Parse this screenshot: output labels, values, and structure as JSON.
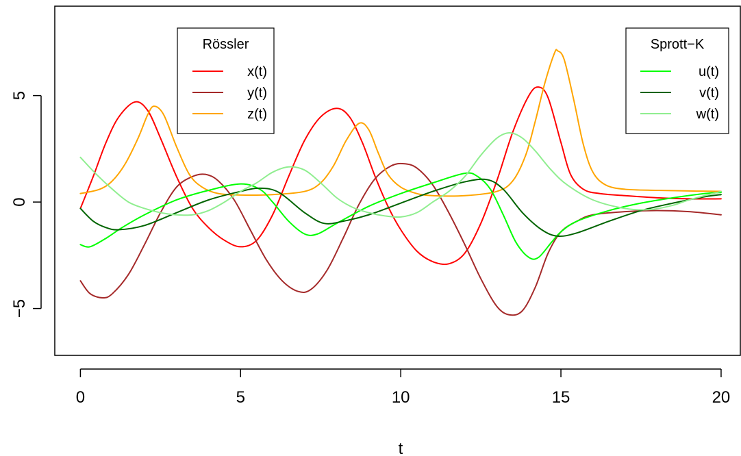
{
  "chart_data": {
    "type": "line",
    "title": "",
    "xlabel": "t",
    "ylabel": "",
    "xlim": [
      -0.8,
      20.6
    ],
    "ylim": [
      -7.2,
      9.2
    ],
    "x_ticks": [
      0,
      5,
      10,
      15,
      20
    ],
    "y_ticks": [
      -5,
      0,
      5
    ],
    "x_tick_labels": [
      "0",
      "5",
      "10",
      "15",
      "20"
    ],
    "y_tick_labels": [
      "−5",
      "0",
      "5"
    ],
    "grid": false,
    "legends": [
      {
        "title": "Rössler",
        "placement": "top-left",
        "entries": [
          {
            "label": "x(t)",
            "color": "#FF0000"
          },
          {
            "label": "y(t)",
            "color": "#A52A2A"
          },
          {
            "label": "z(t)",
            "color": "#FFA500"
          }
        ]
      },
      {
        "title": "Sprott−K",
        "placement": "top-right",
        "entries": [
          {
            "label": "u(t)",
            "color": "#00FF00"
          },
          {
            "label": "v(t)",
            "color": "#006400"
          },
          {
            "label": "w(t)",
            "color": "#90EE90"
          }
        ]
      }
    ],
    "series": [
      {
        "name": "x(t)",
        "color": "#FF0000",
        "points": [
          [
            0,
            -0.3
          ],
          [
            0.4,
            1.2
          ],
          [
            0.8,
            2.8
          ],
          [
            1.2,
            4.0
          ],
          [
            1.7,
            4.7
          ],
          [
            2.1,
            4.3
          ],
          [
            2.5,
            3.0
          ],
          [
            3.0,
            1.2
          ],
          [
            3.5,
            -0.3
          ],
          [
            4.0,
            -1.2
          ],
          [
            4.5,
            -1.8
          ],
          [
            5.0,
            -2.1
          ],
          [
            5.5,
            -1.8
          ],
          [
            6.0,
            -0.6
          ],
          [
            6.5,
            1.2
          ],
          [
            7.0,
            2.9
          ],
          [
            7.5,
            4.0
          ],
          [
            8.0,
            4.4
          ],
          [
            8.4,
            4.0
          ],
          [
            8.8,
            2.8
          ],
          [
            9.2,
            1.2
          ],
          [
            9.6,
            -0.2
          ],
          [
            10.0,
            -1.3
          ],
          [
            10.5,
            -2.3
          ],
          [
            11.0,
            -2.8
          ],
          [
            11.5,
            -2.9
          ],
          [
            12.0,
            -2.4
          ],
          [
            12.5,
            -1.0
          ],
          [
            13.0,
            1.0
          ],
          [
            13.5,
            3.3
          ],
          [
            14.0,
            5.0
          ],
          [
            14.3,
            5.4
          ],
          [
            14.6,
            4.9
          ],
          [
            15.0,
            2.8
          ],
          [
            15.3,
            1.3
          ],
          [
            15.7,
            0.6
          ],
          [
            16.2,
            0.4
          ],
          [
            17.0,
            0.3
          ],
          [
            18.0,
            0.2
          ],
          [
            19.0,
            0.15
          ],
          [
            20.0,
            0.15
          ]
        ]
      },
      {
        "name": "y(t)",
        "color": "#A52A2A",
        "points": [
          [
            0,
            -3.7
          ],
          [
            0.3,
            -4.3
          ],
          [
            0.7,
            -4.5
          ],
          [
            1.0,
            -4.3
          ],
          [
            1.5,
            -3.4
          ],
          [
            2.0,
            -2.0
          ],
          [
            2.5,
            -0.5
          ],
          [
            3.0,
            0.7
          ],
          [
            3.5,
            1.2
          ],
          [
            3.9,
            1.3
          ],
          [
            4.3,
            1.0
          ],
          [
            4.8,
            0.1
          ],
          [
            5.3,
            -1.3
          ],
          [
            5.8,
            -2.7
          ],
          [
            6.3,
            -3.7
          ],
          [
            6.8,
            -4.2
          ],
          [
            7.2,
            -4.1
          ],
          [
            7.7,
            -3.2
          ],
          [
            8.2,
            -1.7
          ],
          [
            8.7,
            -0.1
          ],
          [
            9.2,
            1.1
          ],
          [
            9.7,
            1.7
          ],
          [
            10.1,
            1.8
          ],
          [
            10.5,
            1.6
          ],
          [
            11.0,
            0.8
          ],
          [
            11.5,
            -0.5
          ],
          [
            12.0,
            -2.0
          ],
          [
            12.5,
            -3.6
          ],
          [
            13.0,
            -4.9
          ],
          [
            13.4,
            -5.3
          ],
          [
            13.8,
            -5.1
          ],
          [
            14.2,
            -4.0
          ],
          [
            14.6,
            -2.4
          ],
          [
            15.0,
            -1.4
          ],
          [
            15.5,
            -0.9
          ],
          [
            16.0,
            -0.6
          ],
          [
            17.0,
            -0.45
          ],
          [
            18.0,
            -0.4
          ],
          [
            19.0,
            -0.45
          ],
          [
            20.0,
            -0.6
          ]
        ]
      },
      {
        "name": "z(t)",
        "color": "#FFA500",
        "points": [
          [
            0,
            0.4
          ],
          [
            0.6,
            0.6
          ],
          [
            1.0,
            1.0
          ],
          [
            1.4,
            1.8
          ],
          [
            1.8,
            3.0
          ],
          [
            2.1,
            4.1
          ],
          [
            2.3,
            4.5
          ],
          [
            2.6,
            4.1
          ],
          [
            3.0,
            2.6
          ],
          [
            3.4,
            1.3
          ],
          [
            3.8,
            0.7
          ],
          [
            4.3,
            0.4
          ],
          [
            5.0,
            0.33
          ],
          [
            6.0,
            0.35
          ],
          [
            7.0,
            0.5
          ],
          [
            7.5,
            0.9
          ],
          [
            7.9,
            1.7
          ],
          [
            8.3,
            2.9
          ],
          [
            8.7,
            3.7
          ],
          [
            9.0,
            3.4
          ],
          [
            9.3,
            2.3
          ],
          [
            9.6,
            1.3
          ],
          [
            10.0,
            0.7
          ],
          [
            10.5,
            0.4
          ],
          [
            11.0,
            0.3
          ],
          [
            12.0,
            0.3
          ],
          [
            13.0,
            0.5
          ],
          [
            13.5,
            1.0
          ],
          [
            13.9,
            2.2
          ],
          [
            14.2,
            3.8
          ],
          [
            14.5,
            5.6
          ],
          [
            14.8,
            7.0
          ],
          [
            14.9,
            7.1
          ],
          [
            15.1,
            6.7
          ],
          [
            15.4,
            4.8
          ],
          [
            15.7,
            2.7
          ],
          [
            16.0,
            1.4
          ],
          [
            16.4,
            0.8
          ],
          [
            17.0,
            0.6
          ],
          [
            18.0,
            0.55
          ],
          [
            19.0,
            0.52
          ],
          [
            20.0,
            0.5
          ]
        ]
      },
      {
        "name": "u(t)",
        "color": "#00FF00",
        "points": [
          [
            0,
            -2.0
          ],
          [
            0.3,
            -2.1
          ],
          [
            0.8,
            -1.7
          ],
          [
            1.3,
            -1.2
          ],
          [
            2.0,
            -0.6
          ],
          [
            3.0,
            0.1
          ],
          [
            4.0,
            0.55
          ],
          [
            5.0,
            0.85
          ],
          [
            5.6,
            0.6
          ],
          [
            6.0,
            0.0
          ],
          [
            6.5,
            -0.9
          ],
          [
            7.0,
            -1.5
          ],
          [
            7.4,
            -1.5
          ],
          [
            8.0,
            -1.0
          ],
          [
            9.0,
            -0.2
          ],
          [
            10.0,
            0.4
          ],
          [
            11.0,
            0.9
          ],
          [
            12.0,
            1.35
          ],
          [
            12.4,
            1.2
          ],
          [
            12.8,
            0.6
          ],
          [
            13.2,
            -0.6
          ],
          [
            13.6,
            -1.9
          ],
          [
            14.0,
            -2.6
          ],
          [
            14.3,
            -2.6
          ],
          [
            14.7,
            -1.9
          ],
          [
            15.0,
            -1.4
          ],
          [
            15.5,
            -0.9
          ],
          [
            16.5,
            -0.4
          ],
          [
            17.5,
            -0.05
          ],
          [
            18.5,
            0.2
          ],
          [
            19.5,
            0.4
          ],
          [
            20.0,
            0.45
          ]
        ]
      },
      {
        "name": "v(t)",
        "color": "#006400",
        "points": [
          [
            0,
            -0.3
          ],
          [
            0.4,
            -0.9
          ],
          [
            0.8,
            -1.2
          ],
          [
            1.2,
            -1.3
          ],
          [
            2.0,
            -1.1
          ],
          [
            3.0,
            -0.5
          ],
          [
            4.0,
            0.1
          ],
          [
            5.0,
            0.5
          ],
          [
            5.6,
            0.65
          ],
          [
            6.2,
            0.45
          ],
          [
            7.0,
            -0.5
          ],
          [
            7.6,
            -1.0
          ],
          [
            8.2,
            -0.9
          ],
          [
            9.0,
            -0.6
          ],
          [
            10.0,
            -0.05
          ],
          [
            11.0,
            0.5
          ],
          [
            12.0,
            0.95
          ],
          [
            12.7,
            1.05
          ],
          [
            13.2,
            0.6
          ],
          [
            13.8,
            -0.5
          ],
          [
            14.4,
            -1.3
          ],
          [
            14.9,
            -1.6
          ],
          [
            15.5,
            -1.45
          ],
          [
            16.5,
            -0.9
          ],
          [
            17.5,
            -0.4
          ],
          [
            18.5,
            -0.05
          ],
          [
            19.5,
            0.25
          ],
          [
            20.0,
            0.35
          ]
        ]
      },
      {
        "name": "w(t)",
        "color": "#90EE90",
        "points": [
          [
            0,
            2.1
          ],
          [
            0.5,
            1.3
          ],
          [
            1.0,
            0.6
          ],
          [
            1.5,
            0.0
          ],
          [
            2.0,
            -0.3
          ],
          [
            2.5,
            -0.5
          ],
          [
            3.0,
            -0.6
          ],
          [
            3.5,
            -0.6
          ],
          [
            4.0,
            -0.4
          ],
          [
            4.5,
            0.0
          ],
          [
            5.0,
            0.5
          ],
          [
            5.5,
            0.9
          ],
          [
            6.0,
            1.4
          ],
          [
            6.5,
            1.65
          ],
          [
            7.0,
            1.5
          ],
          [
            7.5,
            0.9
          ],
          [
            8.0,
            0.2
          ],
          [
            8.5,
            -0.25
          ],
          [
            9.0,
            -0.5
          ],
          [
            9.5,
            -0.65
          ],
          [
            10.0,
            -0.7
          ],
          [
            10.5,
            -0.5
          ],
          [
            11.0,
            0.0
          ],
          [
            11.5,
            0.5
          ],
          [
            12.0,
            1.2
          ],
          [
            12.5,
            2.2
          ],
          [
            13.0,
            3.0
          ],
          [
            13.4,
            3.25
          ],
          [
            13.8,
            3.0
          ],
          [
            14.2,
            2.4
          ],
          [
            14.7,
            1.5
          ],
          [
            15.2,
            0.8
          ],
          [
            16.0,
            0.1
          ],
          [
            17.0,
            -0.3
          ],
          [
            17.8,
            -0.35
          ],
          [
            18.5,
            -0.15
          ],
          [
            19.0,
            0.1
          ],
          [
            20.0,
            0.5
          ]
        ]
      }
    ]
  }
}
